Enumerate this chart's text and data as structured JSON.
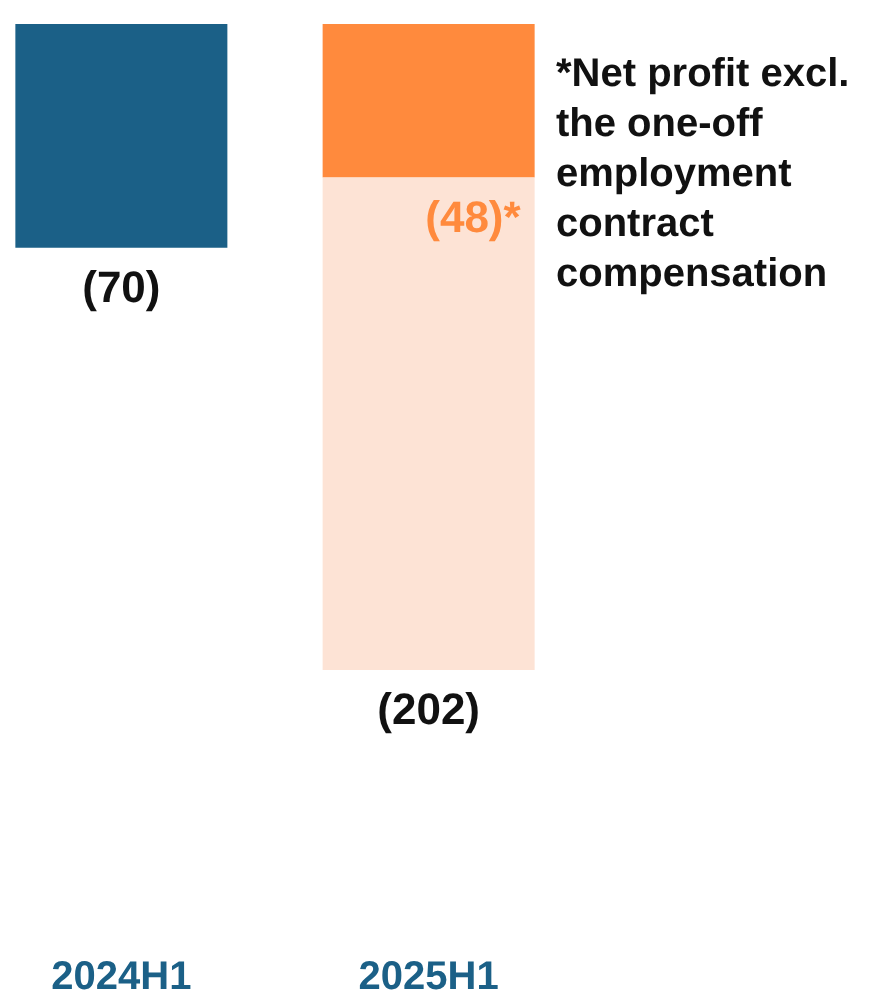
{
  "chart_data": {
    "type": "bar",
    "stacked": true,
    "categories": [
      "2024H1",
      "2025H1"
    ],
    "series": [
      {
        "colors": [
          "#1b6087",
          "#ff8a3d"
        ],
        "values": [
          -70,
          -48
        ],
        "value_labels": [
          null,
          "(48)*"
        ]
      },
      {
        "colors": [
          "#fde3d5",
          "#fde3d5"
        ],
        "values": [
          null,
          -154
        ]
      }
    ],
    "totals": [
      "(70)",
      "(202)"
    ],
    "tick_labels": "x",
    "grid": false,
    "annotations": [
      "*Net profit excl. the one-off employment contract compensation"
    ]
  }
}
